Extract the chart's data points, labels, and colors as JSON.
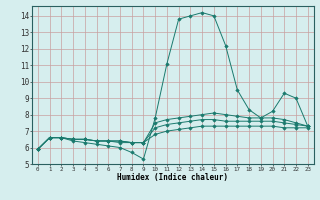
{
  "title": "",
  "xlabel": "Humidex (Indice chaleur)",
  "ylabel": "",
  "background_color": "#d6eeee",
  "grid_color": "#b8d8d8",
  "line_color": "#1a7a6e",
  "xlim": [
    -0.5,
    23.5
  ],
  "ylim": [
    5,
    14.6
  ],
  "yticks": [
    5,
    6,
    7,
    8,
    9,
    10,
    11,
    12,
    13,
    14
  ],
  "xticks": [
    0,
    1,
    2,
    3,
    4,
    5,
    6,
    7,
    8,
    9,
    10,
    11,
    12,
    13,
    14,
    15,
    16,
    17,
    18,
    19,
    20,
    21,
    22,
    23
  ],
  "xtick_labels": [
    "0",
    "1",
    "2",
    "3",
    "4",
    "5",
    "6",
    "7",
    "8",
    "9",
    "10",
    "11",
    "12",
    "13",
    "14",
    "15",
    "16",
    "17",
    "18",
    "19",
    "20",
    "21",
    "22",
    "23"
  ],
  "lines": [
    {
      "x": [
        0,
        1,
        2,
        3,
        4,
        5,
        6,
        7,
        8,
        9,
        10,
        11,
        12,
        13,
        14,
        15,
        16,
        17,
        18,
        19,
        20,
        21,
        22,
        23
      ],
      "y": [
        5.9,
        6.6,
        6.6,
        6.4,
        6.3,
        6.2,
        6.1,
        6.0,
        5.7,
        5.3,
        7.8,
        11.1,
        13.8,
        14.0,
        14.2,
        14.0,
        12.2,
        9.5,
        8.3,
        7.8,
        8.2,
        9.3,
        9.0,
        7.3
      ]
    },
    {
      "x": [
        0,
        1,
        2,
        3,
        4,
        5,
        6,
        7,
        8,
        9,
        10,
        11,
        12,
        13,
        14,
        15,
        16,
        17,
        18,
        19,
        20,
        21,
        22,
        23
      ],
      "y": [
        5.9,
        6.6,
        6.6,
        6.5,
        6.5,
        6.4,
        6.4,
        6.4,
        6.3,
        6.3,
        7.5,
        7.7,
        7.8,
        7.9,
        8.0,
        8.1,
        8.0,
        7.9,
        7.8,
        7.8,
        7.8,
        7.7,
        7.5,
        7.3
      ]
    },
    {
      "x": [
        0,
        1,
        2,
        3,
        4,
        5,
        6,
        7,
        8,
        9,
        10,
        11,
        12,
        13,
        14,
        15,
        16,
        17,
        18,
        19,
        20,
        21,
        22,
        23
      ],
      "y": [
        5.9,
        6.6,
        6.6,
        6.5,
        6.5,
        6.4,
        6.4,
        6.4,
        6.3,
        6.3,
        7.2,
        7.4,
        7.5,
        7.6,
        7.7,
        7.7,
        7.6,
        7.6,
        7.6,
        7.6,
        7.6,
        7.5,
        7.4,
        7.3
      ]
    },
    {
      "x": [
        0,
        1,
        2,
        3,
        4,
        5,
        6,
        7,
        8,
        9,
        10,
        11,
        12,
        13,
        14,
        15,
        16,
        17,
        18,
        19,
        20,
        21,
        22,
        23
      ],
      "y": [
        5.9,
        6.6,
        6.6,
        6.5,
        6.5,
        6.4,
        6.4,
        6.3,
        6.3,
        6.3,
        6.8,
        7.0,
        7.1,
        7.2,
        7.3,
        7.3,
        7.3,
        7.3,
        7.3,
        7.3,
        7.3,
        7.2,
        7.2,
        7.2
      ]
    }
  ]
}
